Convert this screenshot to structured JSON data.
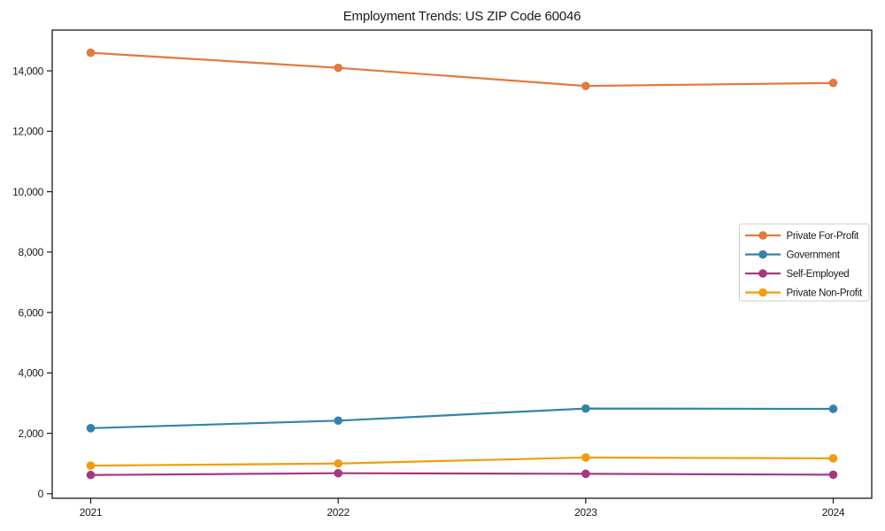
{
  "window": {
    "title": "Employment Trends: US ZIP Code 60046"
  },
  "chart_data": {
    "type": "line",
    "title": "Employment Trends: US ZIP Code 60046",
    "xlabel": "",
    "ylabel": "",
    "categories": [
      "2021",
      "2022",
      "2023",
      "2024"
    ],
    "series": [
      {
        "name": "Private For-Profit",
        "color": "#e2793e",
        "values": [
          14600,
          14100,
          13500,
          13600
        ]
      },
      {
        "name": "Government",
        "color": "#3383a8",
        "values": [
          2170,
          2420,
          2820,
          2810
        ]
      },
      {
        "name": "Self-Employed",
        "color": "#a23a80",
        "values": [
          620,
          680,
          660,
          630
        ]
      },
      {
        "name": "Private Non-Profit",
        "color": "#ef9d0e",
        "values": [
          930,
          1000,
          1200,
          1170
        ]
      }
    ],
    "y_ticks": [
      0,
      2000,
      4000,
      6000,
      8000,
      10000,
      12000,
      14000
    ],
    "ylim": [
      -150,
      15350
    ],
    "grid": false,
    "marker": "circle",
    "legend_position": "center right",
    "axis_color": "#1a1a1a",
    "legend_border_color": "#cccccc",
    "legend_background": "#ffffff"
  }
}
